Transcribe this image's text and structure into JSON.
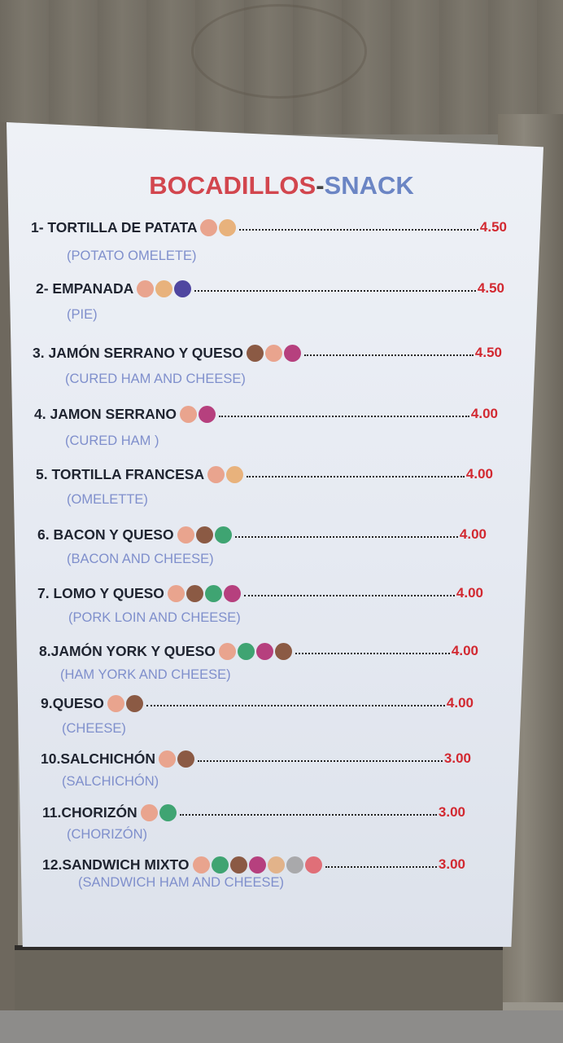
{
  "title": {
    "spanish": "BOCADILLOS",
    "separator": "-",
    "english": "SNACK"
  },
  "allergen_colors": {
    "gluten": "#e9a48e",
    "egg": "#e8b27c",
    "fish": "#4f46a0",
    "milk": "#8b5a44",
    "sulphites": "#b6407e",
    "celery": "#3fa472",
    "sesame": "#e2b38a",
    "nuts": "#a9a9ab",
    "soy": "#e06f78"
  },
  "items": [
    {
      "name": "1- TORTILLA DE PATATA",
      "translation": "(POTATO OMELETE)",
      "price": "4.50",
      "allergens": [
        "gluten",
        "egg"
      ]
    },
    {
      "name": "2- EMPANADA",
      "translation": "(PIE)",
      "price": "4.50",
      "allergens": [
        "gluten",
        "egg",
        "fish"
      ]
    },
    {
      "name": "3. JAMÓN SERRANO Y QUESO",
      "translation": "(CURED HAM AND CHEESE)",
      "price": "4.50",
      "allergens": [
        "milk",
        "gluten",
        "sulphites"
      ]
    },
    {
      "name": "4. JAMON SERRANO",
      "translation": "(CURED HAM )",
      "price": "4.00",
      "allergens": [
        "gluten",
        "sulphites"
      ]
    },
    {
      "name": "5. TORTILLA FRANCESA",
      "translation": "(OMELETTE)",
      "price": "4.00",
      "allergens": [
        "gluten",
        "egg"
      ]
    },
    {
      "name": "6. BACON Y QUESO",
      "translation": "(BACON AND CHEESE)",
      "price": "4.00",
      "allergens": [
        "gluten",
        "milk",
        "celery"
      ]
    },
    {
      "name": "7. LOMO Y QUESO",
      "translation": "(PORK LOIN AND CHEESE)",
      "price": "4.00",
      "allergens": [
        "gluten",
        "milk",
        "celery",
        "sulphites"
      ]
    },
    {
      "name": "8.JAMÓN YORK Y QUESO",
      "translation": "(HAM YORK AND CHEESE)",
      "price": "4.00",
      "allergens": [
        "gluten",
        "celery",
        "sulphites",
        "milk"
      ]
    },
    {
      "name": "9.QUESO",
      "translation": "(CHEESE)",
      "price": "4.00",
      "allergens": [
        "gluten",
        "milk"
      ]
    },
    {
      "name": "10.SALCHICHÓN",
      "translation": "(SALCHICHÓN)",
      "price": "3.00",
      "allergens": [
        "gluten",
        "milk"
      ]
    },
    {
      "name": "11.CHORIZÓN",
      "translation": "(CHORIZÓN)",
      "price": "3.00",
      "allergens": [
        "gluten",
        "celery"
      ]
    },
    {
      "name": "12.SANDWICH MIXTO",
      "translation": "(SANDWICH HAM AND CHEESE)",
      "price": "3.00",
      "allergens": [
        "gluten",
        "celery",
        "milk",
        "sulphites",
        "sesame",
        "nuts",
        "soy"
      ]
    }
  ]
}
